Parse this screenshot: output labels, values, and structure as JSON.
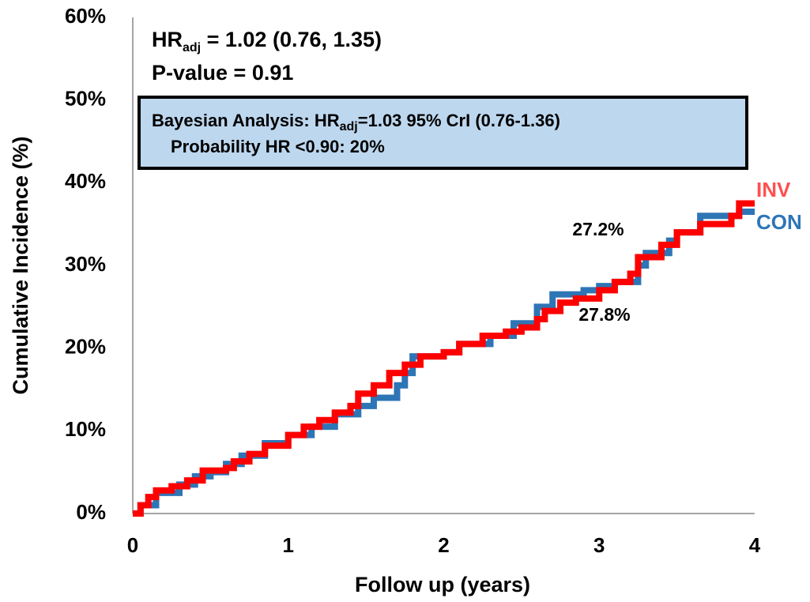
{
  "chart_data": {
    "type": "step",
    "x_label": "Follow up (years)",
    "y_label": "Cumulative Incidence (%)",
    "xlim": [
      0,
      4
    ],
    "xticks": [
      0,
      1,
      2,
      3,
      4
    ],
    "ylim": [
      0,
      60
    ],
    "yticks": [
      {
        "value": 0,
        "label": "0%"
      },
      {
        "value": 10,
        "label": "10%"
      },
      {
        "value": 20,
        "label": "20%"
      },
      {
        "value": 30,
        "label": "30%"
      },
      {
        "value": 40,
        "label": "40%"
      },
      {
        "value": 50,
        "label": "50%"
      },
      {
        "value": 60,
        "label": "60%"
      }
    ],
    "grid": false,
    "series": [
      {
        "name": "INV",
        "color": "#ff0000",
        "label_color": "#ff5050",
        "x": [
          0,
          0.05,
          0.1,
          0.15,
          0.25,
          0.35,
          0.45,
          0.6,
          0.65,
          0.75,
          0.85,
          1.0,
          1.1,
          1.2,
          1.3,
          1.4,
          1.45,
          1.55,
          1.65,
          1.75,
          1.85,
          2.0,
          2.1,
          2.25,
          2.4,
          2.5,
          2.6,
          2.65,
          2.75,
          2.85,
          3.0,
          3.1,
          3.2,
          3.25,
          3.4,
          3.5,
          3.65,
          3.85,
          3.9,
          4.0
        ],
        "values": [
          0,
          1,
          2,
          2.8,
          3.3,
          4,
          5.2,
          5.5,
          6.3,
          7.2,
          8.2,
          9.5,
          10.5,
          11.3,
          12.2,
          13,
          14.5,
          15.5,
          17,
          18,
          19,
          19.5,
          20.5,
          21.5,
          22,
          22.5,
          23.5,
          24.5,
          25.5,
          26,
          27,
          28,
          29,
          31,
          32.5,
          34,
          35,
          36,
          37.5,
          37.5
        ]
      },
      {
        "name": "CON",
        "color": "#2e75b6",
        "label_color": "#2e75b6",
        "x": [
          0,
          0.05,
          0.15,
          0.3,
          0.4,
          0.5,
          0.6,
          0.7,
          0.85,
          1.0,
          1.15,
          1.3,
          1.45,
          1.55,
          1.7,
          1.75,
          1.8,
          2.0,
          2.1,
          2.3,
          2.45,
          2.6,
          2.7,
          2.9,
          3.0,
          3.1,
          3.25,
          3.3,
          3.45,
          3.5,
          3.65,
          3.9,
          4.0
        ],
        "values": [
          0,
          1,
          2.5,
          3.5,
          4.5,
          5,
          6,
          7,
          8.5,
          9.5,
          10.5,
          12,
          13,
          14,
          15.5,
          17,
          19,
          19.5,
          20.5,
          21.5,
          23,
          25,
          26.5,
          27,
          27.5,
          28,
          30,
          31.5,
          33,
          34,
          36,
          36.5,
          36.5
        ]
      }
    ],
    "annotations": {
      "hr_main": "HR",
      "hr_sub": "adj",
      "hr_rest": " = 1.02 (0.76, 1.35)",
      "p_value": "P-value = 0.91",
      "bayes_main": "Bayesian Analysis: HR",
      "bayes_sub": "adj",
      "bayes_rest": "=1.03 95% CrI (0.76-1.36)",
      "probability": "Probability HR <0.90: 20%",
      "con_label": "27.2%",
      "inv_label": "27.8%"
    }
  }
}
